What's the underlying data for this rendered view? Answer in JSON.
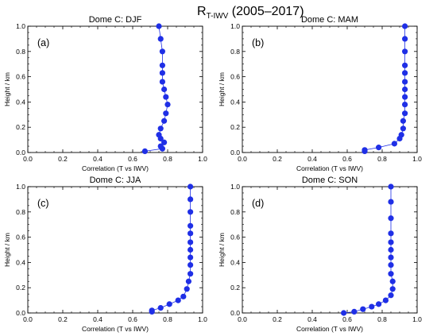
{
  "figure": {
    "title_main": "R",
    "title_sub": "T-IWV",
    "title_rest": " (2005–2017)"
  },
  "chart_data": [
    {
      "type": "line",
      "title": "Dome C: DJF",
      "panel_label": "(a)",
      "xlabel": "Correlation (T vs IWV)",
      "ylabel": "Height / km",
      "xlim": [
        0.0,
        1.0
      ],
      "ylim": [
        0.0,
        1.0
      ],
      "xticks": [
        "0.0",
        "0.2",
        "0.4",
        "0.6",
        "0.8",
        "1.0"
      ],
      "yticks": [
        "0.0",
        "0.2",
        "0.4",
        "0.6",
        "0.8",
        "1.0"
      ],
      "color": "#1f2fe6",
      "x": [
        0.67,
        0.77,
        0.76,
        0.78,
        0.76,
        0.75,
        0.76,
        0.78,
        0.79,
        0.8,
        0.79,
        0.78,
        0.77,
        0.77,
        0.77,
        0.77,
        0.76,
        0.75
      ],
      "y": [
        0.01,
        0.03,
        0.05,
        0.08,
        0.11,
        0.14,
        0.19,
        0.25,
        0.31,
        0.38,
        0.44,
        0.5,
        0.56,
        0.63,
        0.69,
        0.8,
        0.9,
        1.0
      ]
    },
    {
      "type": "line",
      "title": "Dome C: MAM",
      "panel_label": "(b)",
      "xlabel": "Correlation (T vs IWV)",
      "ylabel": "Height / km",
      "xlim": [
        0.0,
        1.0
      ],
      "ylim": [
        0.0,
        1.0
      ],
      "xticks": [
        "0.0",
        "0.2",
        "0.4",
        "0.6",
        "0.8",
        "1.0"
      ],
      "yticks": [
        "0.0",
        "0.2",
        "0.4",
        "0.6",
        "0.8",
        "1.0"
      ],
      "color": "#1f2fe6",
      "x": [
        0.7,
        0.7,
        0.78,
        0.87,
        0.9,
        0.91,
        0.92,
        0.92,
        0.93,
        0.93,
        0.93,
        0.93,
        0.93,
        0.93,
        0.93,
        0.93,
        0.93,
        0.93
      ],
      "y": [
        0.01,
        0.02,
        0.04,
        0.07,
        0.11,
        0.14,
        0.19,
        0.25,
        0.31,
        0.38,
        0.44,
        0.5,
        0.56,
        0.63,
        0.69,
        0.8,
        0.9,
        1.0
      ]
    },
    {
      "type": "line",
      "title": "Dome C: JJA",
      "panel_label": "(c)",
      "xlabel": "Correlation (T vs IWV)",
      "ylabel": "Height / km",
      "xlim": [
        0.0,
        1.0
      ],
      "ylim": [
        0.0,
        1.0
      ],
      "xticks": [
        "0.0",
        "0.2",
        "0.4",
        "0.6",
        "0.8",
        "1.0"
      ],
      "yticks": [
        "0.0",
        "0.2",
        "0.4",
        "0.6",
        "0.8",
        "1.0"
      ],
      "color": "#1f2fe6",
      "x": [
        0.71,
        0.71,
        0.76,
        0.81,
        0.86,
        0.89,
        0.91,
        0.92,
        0.93,
        0.93,
        0.93,
        0.93,
        0.93,
        0.93,
        0.93,
        0.93,
        0.93,
        0.93
      ],
      "y": [
        0.01,
        0.02,
        0.04,
        0.07,
        0.1,
        0.13,
        0.19,
        0.25,
        0.31,
        0.38,
        0.44,
        0.5,
        0.56,
        0.63,
        0.69,
        0.8,
        0.9,
        1.0
      ]
    },
    {
      "type": "line",
      "title": "Dome C: SON",
      "panel_label": "(d)",
      "xlabel": "Correlation (T vs IWV)",
      "ylabel": "Height / km",
      "xlim": [
        0.0,
        1.0
      ],
      "ylim": [
        0.0,
        1.0
      ],
      "xticks": [
        "0.0",
        "0.2",
        "0.4",
        "0.6",
        "0.8",
        "1.0"
      ],
      "yticks": [
        "0.0",
        "0.2",
        "0.4",
        "0.6",
        "0.8",
        "1.0"
      ],
      "color": "#1f2fe6",
      "x": [
        0.58,
        0.64,
        0.69,
        0.74,
        0.78,
        0.82,
        0.85,
        0.86,
        0.86,
        0.85,
        0.85,
        0.85,
        0.85,
        0.85,
        0.85,
        0.85,
        0.85,
        0.85
      ],
      "y": [
        0.0,
        0.01,
        0.03,
        0.05,
        0.07,
        0.1,
        0.14,
        0.19,
        0.25,
        0.31,
        0.38,
        0.44,
        0.5,
        0.56,
        0.63,
        0.75,
        0.88,
        1.0
      ]
    }
  ]
}
